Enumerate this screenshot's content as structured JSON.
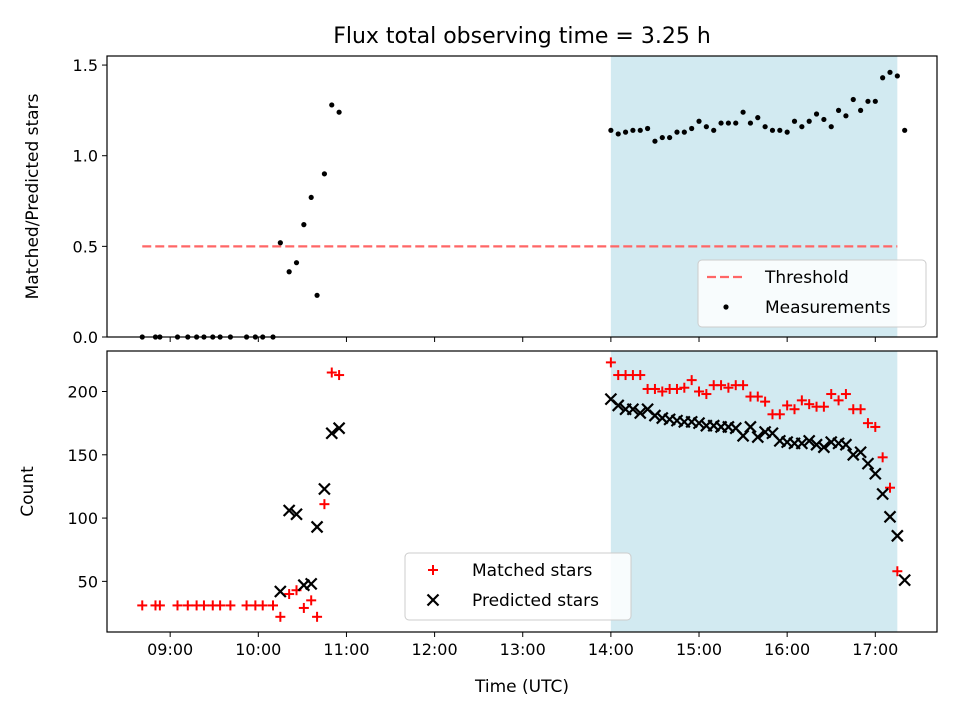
{
  "figure": {
    "title": "Flux total observing time = 3.25 h",
    "xlabel": "Time (UTC)"
  },
  "colors": {
    "highlight": "#add8e6",
    "threshold": "#ff6666",
    "matched": "#ff0000",
    "predicted": "#000000",
    "measurement": "#000000"
  },
  "chart_data": [
    {
      "type": "scatter",
      "ylabel": "Matched/Predicted stars",
      "xlim": [
        "08:17",
        "17:42"
      ],
      "ylim": [
        0,
        1.55
      ],
      "xticks": [
        "09:00",
        "10:00",
        "11:00",
        "12:00",
        "13:00",
        "14:00",
        "15:00",
        "16:00",
        "17:00"
      ],
      "yticks": [
        "0.0",
        "0.5",
        "1.0",
        "1.5"
      ],
      "highlight_span": [
        "14:00",
        "17:15"
      ],
      "threshold": {
        "name": "Threshold",
        "y": 0.5,
        "x_range": [
          "08:41",
          "17:15"
        ]
      },
      "legend": {
        "position": "lower right",
        "entries": [
          "Threshold",
          "Measurements"
        ]
      },
      "series": [
        {
          "name": "Measurements",
          "marker": "dot",
          "points": [
            [
              "08:41",
              0.0
            ],
            [
              "08:50",
              0.0
            ],
            [
              "08:53",
              0.0
            ],
            [
              "09:05",
              0.0
            ],
            [
              "09:12",
              0.0
            ],
            [
              "09:18",
              0.0
            ],
            [
              "09:23",
              0.0
            ],
            [
              "09:29",
              0.0
            ],
            [
              "09:34",
              0.0
            ],
            [
              "09:41",
              0.0
            ],
            [
              "09:52",
              0.0
            ],
            [
              "09:58",
              0.0
            ],
            [
              "10:03",
              0.0
            ],
            [
              "10:10",
              0.0
            ],
            [
              "10:15",
              0.52
            ],
            [
              "10:21",
              0.36
            ],
            [
              "10:26",
              0.41
            ],
            [
              "10:31",
              0.62
            ],
            [
              "10:36",
              0.77
            ],
            [
              "10:40",
              0.23
            ],
            [
              "10:45",
              0.9
            ],
            [
              "10:50",
              1.28
            ],
            [
              "10:55",
              1.24
            ],
            [
              "14:00",
              1.14
            ],
            [
              "14:05",
              1.12
            ],
            [
              "14:10",
              1.13
            ],
            [
              "14:15",
              1.14
            ],
            [
              "14:20",
              1.14
            ],
            [
              "14:25",
              1.15
            ],
            [
              "14:30",
              1.08
            ],
            [
              "14:35",
              1.1
            ],
            [
              "14:40",
              1.1
            ],
            [
              "14:45",
              1.13
            ],
            [
              "14:50",
              1.13
            ],
            [
              "14:55",
              1.15
            ],
            [
              "15:00",
              1.19
            ],
            [
              "15:05",
              1.16
            ],
            [
              "15:10",
              1.14
            ],
            [
              "15:15",
              1.18
            ],
            [
              "15:20",
              1.18
            ],
            [
              "15:25",
              1.18
            ],
            [
              "15:30",
              1.24
            ],
            [
              "15:35",
              1.18
            ],
            [
              "15:40",
              1.21
            ],
            [
              "15:45",
              1.16
            ],
            [
              "15:50",
              1.14
            ],
            [
              "15:55",
              1.14
            ],
            [
              "16:00",
              1.13
            ],
            [
              "16:05",
              1.19
            ],
            [
              "16:10",
              1.16
            ],
            [
              "16:15",
              1.19
            ],
            [
              "16:20",
              1.23
            ],
            [
              "16:25",
              1.2
            ],
            [
              "16:30",
              1.16
            ],
            [
              "16:35",
              1.25
            ],
            [
              "16:40",
              1.22
            ],
            [
              "16:45",
              1.31
            ],
            [
              "16:50",
              1.25
            ],
            [
              "16:55",
              1.3
            ],
            [
              "17:00",
              1.3
            ],
            [
              "17:05",
              1.43
            ],
            [
              "17:10",
              1.46
            ],
            [
              "17:15",
              1.44
            ],
            [
              "17:20",
              1.14
            ]
          ]
        }
      ]
    },
    {
      "type": "scatter",
      "ylabel": "Count",
      "xlim": [
        "08:17",
        "17:42"
      ],
      "ylim": [
        10,
        232
      ],
      "xticks": [
        "09:00",
        "10:00",
        "11:00",
        "12:00",
        "13:00",
        "14:00",
        "15:00",
        "16:00",
        "17:00"
      ],
      "yticks": [
        "50",
        "100",
        "150",
        "200"
      ],
      "highlight_span": [
        "14:00",
        "17:15"
      ],
      "legend": {
        "position": "lower center",
        "entries": [
          "Matched stars",
          "Predicted stars"
        ]
      },
      "series": [
        {
          "name": "Matched stars",
          "marker": "plus",
          "points": [
            [
              "08:41",
              31
            ],
            [
              "08:50",
              31
            ],
            [
              "08:53",
              31
            ],
            [
              "09:05",
              31
            ],
            [
              "09:12",
              31
            ],
            [
              "09:18",
              31
            ],
            [
              "09:23",
              31
            ],
            [
              "09:29",
              31
            ],
            [
              "09:34",
              31
            ],
            [
              "09:41",
              31
            ],
            [
              "09:52",
              31
            ],
            [
              "09:58",
              31
            ],
            [
              "10:03",
              31
            ],
            [
              "10:10",
              31
            ],
            [
              "10:15",
              22
            ],
            [
              "10:21",
              40
            ],
            [
              "10:26",
              43
            ],
            [
              "10:31",
              29
            ],
            [
              "10:36",
              35
            ],
            [
              "10:40",
              22
            ],
            [
              "10:45",
              111
            ],
            [
              "10:50",
              215
            ],
            [
              "10:55",
              213
            ],
            [
              "14:00",
              223
            ],
            [
              "14:05",
              213
            ],
            [
              "14:10",
              213
            ],
            [
              "14:15",
              213
            ],
            [
              "14:20",
              213
            ],
            [
              "14:25",
              202
            ],
            [
              "14:30",
              202
            ],
            [
              "14:35",
              200
            ],
            [
              "14:40",
              202
            ],
            [
              "14:45",
              202
            ],
            [
              "14:50",
              203
            ],
            [
              "14:55",
              209
            ],
            [
              "15:00",
              200
            ],
            [
              "15:05",
              198
            ],
            [
              "15:10",
              205
            ],
            [
              "15:15",
              205
            ],
            [
              "15:20",
              203
            ],
            [
              "15:25",
              205
            ],
            [
              "15:30",
              205
            ],
            [
              "15:35",
              196
            ],
            [
              "15:40",
              196
            ],
            [
              "15:45",
              192
            ],
            [
              "15:50",
              182
            ],
            [
              "15:55",
              182
            ],
            [
              "16:00",
              189
            ],
            [
              "16:05",
              186
            ],
            [
              "16:10",
              193
            ],
            [
              "16:15",
              190
            ],
            [
              "16:20",
              188
            ],
            [
              "16:25",
              188
            ],
            [
              "16:30",
              198
            ],
            [
              "16:35",
              193
            ],
            [
              "16:40",
              198
            ],
            [
              "16:45",
              186
            ],
            [
              "16:50",
              186
            ],
            [
              "16:55",
              175
            ],
            [
              "17:00",
              172
            ],
            [
              "17:05",
              148
            ],
            [
              "17:10",
              124
            ],
            [
              "17:15",
              58
            ]
          ]
        },
        {
          "name": "Predicted stars",
          "marker": "cross",
          "points": [
            [
              "10:15",
              42
            ],
            [
              "10:21",
              106
            ],
            [
              "10:26",
              103
            ],
            [
              "10:31",
              47
            ],
            [
              "10:36",
              48
            ],
            [
              "10:40",
              93
            ],
            [
              "10:45",
              123
            ],
            [
              "10:50",
              167
            ],
            [
              "10:55",
              171
            ],
            [
              "14:00",
              194
            ],
            [
              "14:05",
              189
            ],
            [
              "14:10",
              186
            ],
            [
              "14:15",
              186
            ],
            [
              "14:20",
              183
            ],
            [
              "14:25",
              186
            ],
            [
              "14:30",
              181
            ],
            [
              "14:35",
              179
            ],
            [
              "14:40",
              178
            ],
            [
              "14:45",
              177
            ],
            [
              "14:50",
              176
            ],
            [
              "14:55",
              176
            ],
            [
              "15:00",
              175
            ],
            [
              "15:05",
              173
            ],
            [
              "15:10",
              173
            ],
            [
              "15:15",
              172
            ],
            [
              "15:20",
              172
            ],
            [
              "15:25",
              171
            ],
            [
              "15:30",
              165
            ],
            [
              "15:35",
              172
            ],
            [
              "15:40",
              164
            ],
            [
              "15:45",
              168
            ],
            [
              "15:50",
              167
            ],
            [
              "15:55",
              161
            ],
            [
              "16:00",
              160
            ],
            [
              "16:05",
              159
            ],
            [
              "16:10",
              159
            ],
            [
              "16:15",
              161
            ],
            [
              "16:20",
              158
            ],
            [
              "16:25",
              156
            ],
            [
              "16:30",
              160
            ],
            [
              "16:35",
              159
            ],
            [
              "16:40",
              158
            ],
            [
              "16:45",
              150
            ],
            [
              "16:50",
              152
            ],
            [
              "16:55",
              143
            ],
            [
              "17:00",
              135
            ],
            [
              "17:05",
              119
            ],
            [
              "17:10",
              101
            ],
            [
              "17:15",
              86
            ],
            [
              "17:20",
              51
            ]
          ]
        }
      ]
    }
  ]
}
